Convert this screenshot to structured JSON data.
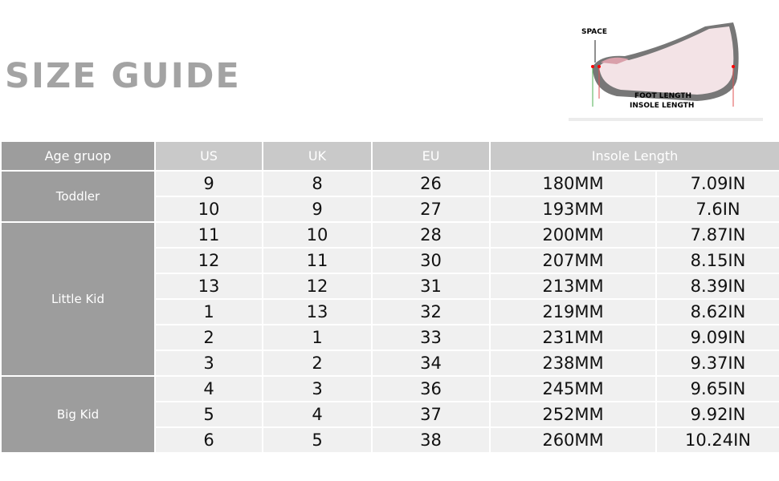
{
  "title": "SIZE GUIDE",
  "diagram": {
    "space_label": "SPACE",
    "foot_length_label": "FOOT LENGTH",
    "insole_length_label": "INSOLE LENGTH"
  },
  "headers": {
    "age_group": "Age gruop",
    "us": "US",
    "uk": "UK",
    "eu": "EU",
    "insole_length": "Insole Length"
  },
  "groups": [
    {
      "name": "Toddler",
      "rows": [
        [
          "9",
          "8",
          "26",
          "180MM",
          "7.09IN"
        ],
        [
          "10",
          "9",
          "27",
          "193MM",
          "7.6IN"
        ]
      ]
    },
    {
      "name": "Little Kid",
      "rows": [
        [
          "11",
          "10",
          "28",
          "200MM",
          "7.87IN"
        ],
        [
          "12",
          "11",
          "30",
          "207MM",
          "8.15IN"
        ],
        [
          "13",
          "12",
          "31",
          "213MM",
          "8.39IN"
        ],
        [
          "1",
          "13",
          "32",
          "219MM",
          "8.62IN"
        ],
        [
          "2",
          "1",
          "33",
          "231MM",
          "9.09IN"
        ],
        [
          "3",
          "2",
          "34",
          "238MM",
          "9.37IN"
        ]
      ]
    },
    {
      "name": "Big Kid",
      "rows": [
        [
          "4",
          "3",
          "36",
          "245MM",
          "9.65IN"
        ],
        [
          "5",
          "4",
          "37",
          "252MM",
          "9.92IN"
        ],
        [
          "6",
          "5",
          "38",
          "260MM",
          "10.24IN"
        ]
      ]
    }
  ]
}
